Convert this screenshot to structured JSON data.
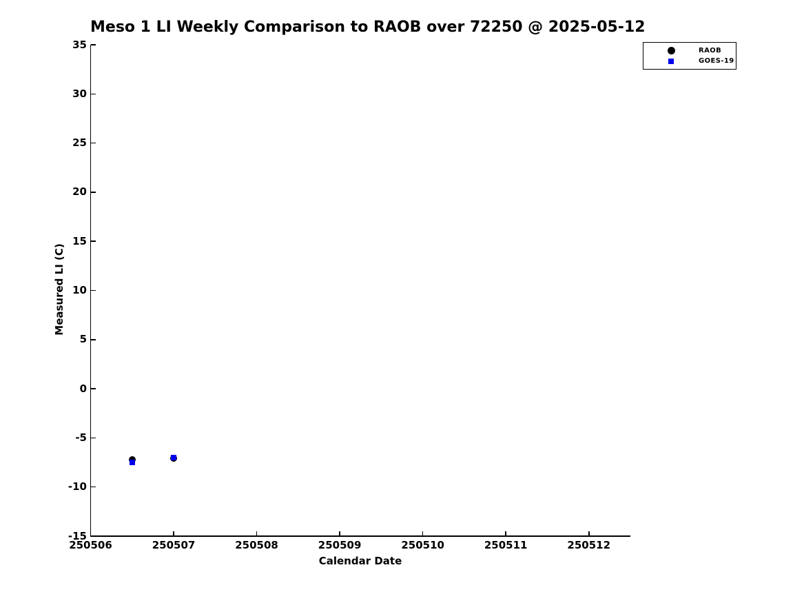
{
  "colors": {
    "background": "#ffffff",
    "axis": "#000000",
    "text": "#000000",
    "raob_marker": "#000000",
    "goes_marker": "#0000ee"
  },
  "chart_data": {
    "type": "scatter",
    "title": "Meso 1 LI Weekly Comparison to RAOB over 72250 @ 2025-05-12",
    "xlabel": "Calendar Date",
    "ylabel": "Measured LI (C)",
    "xlim": [
      250506,
      250512.5
    ],
    "ylim": [
      -15,
      35
    ],
    "xticks": [
      250506,
      250507,
      250508,
      250509,
      250510,
      250511,
      250512
    ],
    "yticks": [
      35,
      30,
      25,
      20,
      15,
      10,
      5,
      0,
      -5,
      -10,
      -15
    ],
    "grid": false,
    "legend_position": "top-right",
    "series": [
      {
        "name": "RAOB",
        "marker": "circle",
        "color": "#000000",
        "marker_size": 10,
        "points": [
          {
            "x": 250506.5,
            "y": -7.2
          },
          {
            "x": 250507.0,
            "y": -7.1
          }
        ]
      },
      {
        "name": "GOES-19",
        "marker": "square",
        "color": "#0000ee",
        "marker_size": 8,
        "points": [
          {
            "x": 250506.5,
            "y": -7.5
          },
          {
            "x": 250507.0,
            "y": -7.0
          }
        ]
      }
    ]
  }
}
